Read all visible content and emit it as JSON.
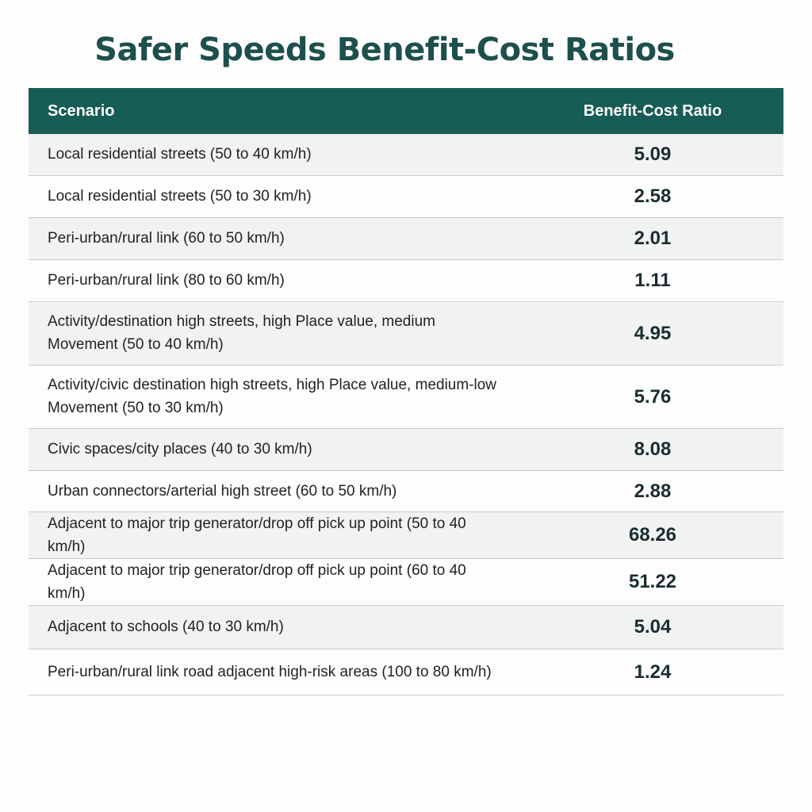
{
  "title": "Safer Speeds Benefit-Cost Ratios",
  "colors": {
    "header_bg": "#175c55",
    "title": "#1d4f4d"
  },
  "chart_data": {
    "type": "table",
    "title": "Safer Speeds Benefit-Cost Ratios",
    "columns": [
      "Scenario",
      "Benefit-Cost Ratio"
    ],
    "rows": [
      {
        "scenario": "Local residential streets (50 to 40 km/h)",
        "ratio": "5.09"
      },
      {
        "scenario": "Local residential streets (50 to 30 km/h)",
        "ratio": "2.58"
      },
      {
        "scenario": "Peri-urban/rural link (60 to 50 km/h)",
        "ratio": "2.01"
      },
      {
        "scenario": "Peri-urban/rural link (80 to 60 km/h)",
        "ratio": "1.11"
      },
      {
        "scenario": "Activity/destination high streets, high Place value, medium Movement (50 to 40 km/h)",
        "ratio": "4.95"
      },
      {
        "scenario": "Activity/civic destination high streets, high Place value, medium-low Movement (50 to 30 km/h)",
        "ratio": "5.76"
      },
      {
        "scenario": "Civic spaces/city places (40 to 30 km/h)",
        "ratio": "8.08"
      },
      {
        "scenario": "Urban connectors/arterial high street (60 to 50 km/h)",
        "ratio": "2.88"
      },
      {
        "scenario": "Adjacent to major trip generator/drop off pick up point (50 to 40 km/h)",
        "ratio": "68.26"
      },
      {
        "scenario": "Adjacent to major trip generator/drop off pick up point (60 to 40 km/h)",
        "ratio": "51.22"
      },
      {
        "scenario": "Adjacent to schools (40 to 30 km/h)",
        "ratio": "5.04"
      },
      {
        "scenario": "Peri-urban/rural link road adjacent high-risk areas (100 to 80 km/h)",
        "ratio": "1.24"
      }
    ]
  }
}
